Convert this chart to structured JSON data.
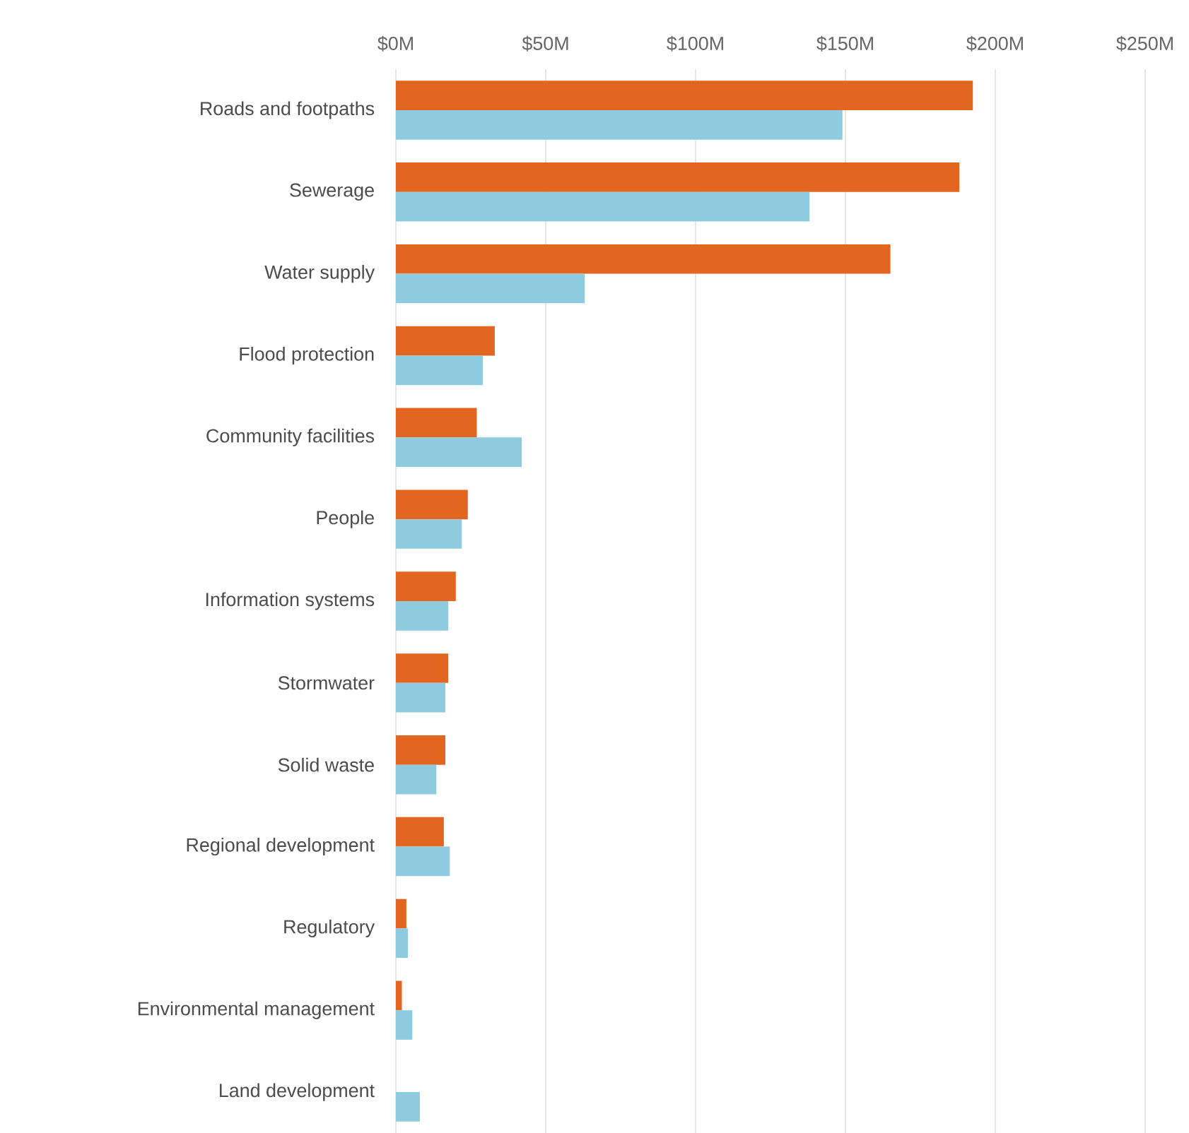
{
  "chart_data": {
    "type": "bar",
    "orientation": "horizontal",
    "categories": [
      "Roads and footpaths",
      "Sewerage",
      "Water supply",
      "Flood protection",
      "Community facilities",
      "People",
      "Information systems",
      "Stormwater",
      "Solid waste",
      "Regional development",
      "Regulatory",
      "Environmental management",
      "Land development"
    ],
    "series": [
      {
        "color": "#e2661f",
        "values": [
          192.5,
          188,
          165,
          33,
          27,
          24,
          20,
          17.5,
          16.5,
          16,
          3.5,
          2,
          null
        ]
      },
      {
        "color": "#8ecbde",
        "values": [
          149,
          138,
          63,
          29,
          42,
          22,
          17.5,
          16.5,
          13.5,
          18,
          4,
          5.5,
          8
        ]
      }
    ],
    "xlim": [
      0,
      250
    ],
    "xticks": [
      {
        "value": 0,
        "label": "$0M"
      },
      {
        "value": 50,
        "label": "$50M"
      },
      {
        "value": 100,
        "label": "$100M"
      },
      {
        "value": 150,
        "label": "$150M"
      },
      {
        "value": 200,
        "label": "$200M"
      },
      {
        "value": 250,
        "label": "$250M"
      }
    ],
    "grid": "x"
  }
}
